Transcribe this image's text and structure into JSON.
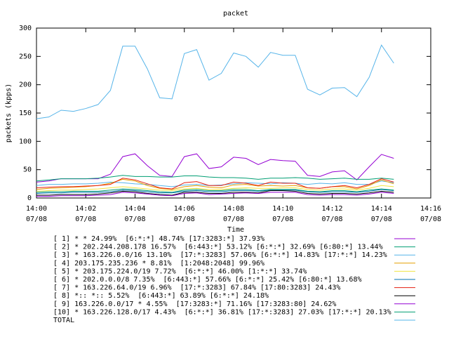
{
  "chart_data": {
    "type": "line",
    "title": "packet",
    "xlabel": "Time",
    "ylabel": "packets (kpps)",
    "x": [
      0,
      0.5,
      1,
      1.5,
      2,
      2.5,
      3,
      3.5,
      4,
      4.5,
      5,
      5.5,
      6,
      6.5,
      7,
      7.5,
      8,
      8.5,
      9,
      9.5,
      10,
      10.5,
      11,
      11.5,
      12,
      12.5,
      13,
      13.5,
      14,
      14.5
    ],
    "xlim": [
      0,
      16
    ],
    "xticks": [
      {
        "value": 0,
        "label": "14:00\n07/08"
      },
      {
        "value": 2,
        "label": "14:02\n07/08"
      },
      {
        "value": 4,
        "label": "14:04\n07/08"
      },
      {
        "value": 6,
        "label": "14:06\n07/08"
      },
      {
        "value": 8,
        "label": "14:08\n07/08"
      },
      {
        "value": 10,
        "label": "14:10\n07/08"
      },
      {
        "value": 12,
        "label": "14:12\n07/08"
      },
      {
        "value": 14,
        "label": "14:14\n07/08"
      },
      {
        "value": 16,
        "label": "14:16\n07/08"
      }
    ],
    "ylim": [
      0,
      300
    ],
    "yticks": [
      0,
      50,
      100,
      150,
      200,
      250,
      300
    ],
    "grid": false,
    "series": [
      {
        "name": "[ 1] * * 24.99%  [6:*:*] 48.74% [17:3283:*] 37.93%",
        "color": "#9400d3",
        "values": [
          28,
          30,
          34,
          34,
          34,
          34,
          42,
          73,
          78,
          57,
          40,
          38,
          73,
          78,
          52,
          55,
          72,
          70,
          59,
          68,
          66,
          65,
          40,
          38,
          46,
          48,
          32,
          55,
          77,
          70
        ]
      },
      {
        "name": "[ 2] * 202.244.208.178 16.57%  [6:443:*] 53.12% [6:*:*] 32.69% [6:80:*] 13.44%",
        "color": "#009e73",
        "values": [
          30,
          32,
          34,
          34,
          34,
          35,
          37,
          40,
          38,
          38,
          37,
          37,
          39,
          39,
          37,
          36,
          36,
          35,
          33,
          35,
          35,
          36,
          35,
          33,
          34,
          35,
          33,
          33,
          35,
          33
        ]
      },
      {
        "name": "[ 3] * 163.226.0.0/16 13.10%  [17:*:3283] 57.06% [6:*:*] 14.83% [17:*:*] 14.23%",
        "color": "#56b4e9",
        "values": [
          22,
          24,
          24,
          25,
          25,
          26,
          28,
          27,
          25,
          24,
          22,
          20,
          23,
          24,
          22,
          23,
          25,
          27,
          26,
          25,
          27,
          26,
          24,
          26,
          25,
          27,
          24,
          24,
          30,
          27
        ]
      },
      {
        "name": "[ 4] 203.175.235.236 * 8.81%  [1:2048:2048] 99.96%",
        "color": "#e69f00",
        "values": [
          15,
          17,
          18,
          19,
          20,
          22,
          26,
          33,
          30,
          22,
          17,
          15,
          20,
          22,
          19,
          18,
          23,
          24,
          21,
          22,
          21,
          22,
          18,
          17,
          20,
          20,
          16,
          22,
          32,
          25
        ]
      },
      {
        "name": "[ 5] * 203.175.224.0/19 7.72%  [6:*:*] 46.00% [1:*:*] 33.74%",
        "color": "#f0e442",
        "values": [
          12,
          13,
          14,
          14,
          15,
          16,
          18,
          20,
          18,
          16,
          14,
          13,
          16,
          17,
          15,
          15,
          17,
          18,
          17,
          17,
          18,
          18,
          15,
          14,
          16,
          16,
          14,
          17,
          22,
          20
        ]
      },
      {
        "name": "[ 6] * 202.0.0.0/8 7.35%  [6:443:*] 57.66% [6:*:*] 25.42% [6:80:*] 13.68%",
        "color": "#0072b2",
        "values": [
          8,
          9,
          9,
          10,
          10,
          10,
          11,
          14,
          13,
          11,
          9,
          9,
          12,
          13,
          11,
          11,
          13,
          13,
          12,
          14,
          14,
          14,
          11,
          10,
          11,
          11,
          10,
          12,
          15,
          13
        ]
      },
      {
        "name": "[ 7] * 163.226.64.0/19 6.96%  [17:*:3283] 67.84% [17:80:3283] 24.43%",
        "color": "#e51e10",
        "values": [
          18,
          19,
          20,
          20,
          21,
          22,
          24,
          35,
          32,
          25,
          18,
          16,
          27,
          29,
          22,
          22,
          28,
          26,
          22,
          28,
          26,
          26,
          18,
          17,
          20,
          22,
          18,
          24,
          34,
          28
        ]
      },
      {
        "name": "[ 8] *:: *:: 5.52%  [6:443:*] 63.89% [6:*:*] 24.18%",
        "color": "#000000",
        "values": [
          5,
          5,
          6,
          6,
          6,
          7,
          9,
          12,
          11,
          8,
          6,
          5,
          10,
          10,
          8,
          8,
          10,
          10,
          9,
          13,
          13,
          12,
          8,
          7,
          8,
          8,
          7,
          9,
          12,
          10
        ]
      },
      {
        "name": "[ 9] 163.226.0.0/17 * 4.55%  [17:3283:*] 71.16% [17:3283:80] 24.62%",
        "color": "#9400d3",
        "values": [
          3,
          3,
          4,
          4,
          4,
          5,
          6,
          10,
          9,
          7,
          5,
          4,
          8,
          9,
          6,
          7,
          8,
          9,
          8,
          10,
          10,
          10,
          6,
          5,
          6,
          6,
          5,
          7,
          10,
          8
        ]
      },
      {
        "name": "[10] * 163.226.128.0/17 4.43%  [6:*:*] 36.81% [17:*:3283] 27.03% [17:*:*] 20.13%",
        "color": "#009e73",
        "values": [
          10,
          11,
          11,
          12,
          12,
          12,
          14,
          16,
          15,
          13,
          11,
          10,
          14,
          15,
          13,
          13,
          15,
          15,
          13,
          15,
          15,
          15,
          12,
          11,
          13,
          13,
          11,
          14,
          16,
          14
        ]
      },
      {
        "name": "TOTAL",
        "color": "#56b4e9",
        "values": [
          140,
          143,
          155,
          153,
          158,
          165,
          190,
          268,
          268,
          228,
          177,
          175,
          255,
          262,
          208,
          220,
          256,
          250,
          231,
          257,
          252,
          252,
          192,
          182,
          194,
          195,
          179,
          213,
          270,
          238
        ]
      }
    ]
  }
}
